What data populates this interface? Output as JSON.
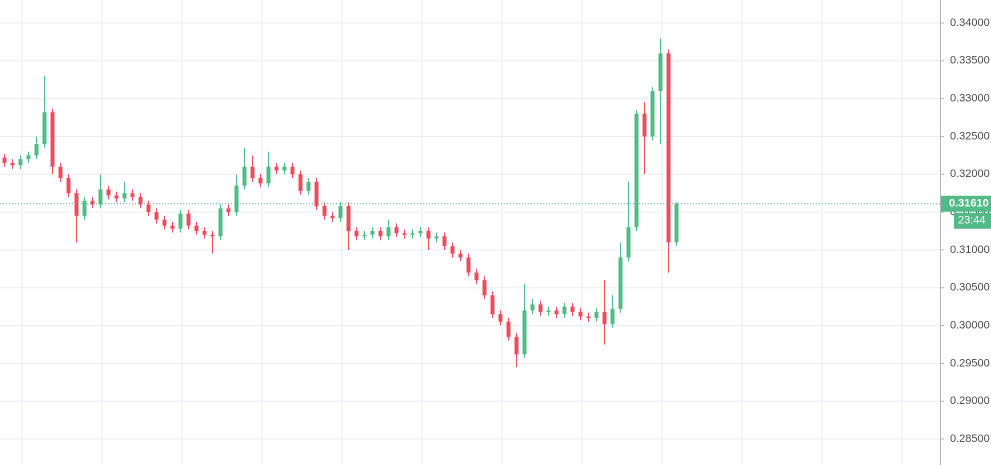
{
  "chart_data": {
    "type": "candlestick",
    "open": [
      0.3222,
      0.3215,
      0.3212,
      0.322,
      0.3225,
      0.324,
      0.3282,
      0.321,
      0.3195,
      0.3175,
      0.3145,
      0.3165,
      0.316,
      0.318,
      0.3172,
      0.3168,
      0.3175,
      0.317,
      0.316,
      0.315,
      0.314,
      0.3132,
      0.3128,
      0.3148,
      0.3132,
      0.3125,
      0.312,
      0.3118,
      0.3155,
      0.315,
      0.3185,
      0.321,
      0.3195,
      0.3188,
      0.321,
      0.3205,
      0.321,
      0.32,
      0.3178,
      0.319,
      0.3158,
      0.3145,
      0.3142,
      0.3158,
      0.3125,
      0.3118,
      0.312,
      0.3125,
      0.3118,
      0.313,
      0.3122,
      0.312,
      0.3122,
      0.3125,
      0.3115,
      0.3118,
      0.3105,
      0.3095,
      0.309,
      0.307,
      0.306,
      0.304,
      0.3015,
      0.3005,
      0.2985,
      0.2962,
      0.302,
      0.3028,
      0.3018,
      0.302,
      0.3015,
      0.3025,
      0.3018,
      0.3012,
      0.301,
      0.3018,
      0.3002,
      0.3022,
      0.309,
      0.313,
      0.328,
      0.325,
      0.331,
      0.336,
      0.311
    ],
    "high": [
      0.3227,
      0.322,
      0.3225,
      0.323,
      0.325,
      0.333,
      0.3287,
      0.3215,
      0.32,
      0.318,
      0.317,
      0.317,
      0.32,
      0.3185,
      0.3177,
      0.319,
      0.318,
      0.3175,
      0.3165,
      0.3155,
      0.3145,
      0.3137,
      0.3153,
      0.3153,
      0.3137,
      0.313,
      0.3125,
      0.316,
      0.316,
      0.32,
      0.3235,
      0.3225,
      0.32,
      0.323,
      0.3215,
      0.3215,
      0.3215,
      0.3205,
      0.3195,
      0.3195,
      0.3163,
      0.315,
      0.3163,
      0.3163,
      0.313,
      0.3125,
      0.313,
      0.313,
      0.314,
      0.3135,
      0.3127,
      0.3127,
      0.313,
      0.313,
      0.3123,
      0.3123,
      0.311,
      0.31,
      0.3095,
      0.3075,
      0.3065,
      0.3045,
      0.302,
      0.301,
      0.299,
      0.3055,
      0.3035,
      0.3033,
      0.3025,
      0.3025,
      0.303,
      0.303,
      0.3023,
      0.3017,
      0.3023,
      0.306,
      0.304,
      0.311,
      0.319,
      0.3285,
      0.3295,
      0.3315,
      0.338,
      0.3365,
      0.3163
    ],
    "low": [
      0.321,
      0.3207,
      0.3207,
      0.3215,
      0.322,
      0.3235,
      0.32,
      0.319,
      0.317,
      0.311,
      0.314,
      0.3155,
      0.3155,
      0.3167,
      0.3163,
      0.3163,
      0.3165,
      0.3155,
      0.3145,
      0.3135,
      0.3127,
      0.3123,
      0.3123,
      0.3127,
      0.312,
      0.3115,
      0.3095,
      0.3113,
      0.3145,
      0.3145,
      0.318,
      0.319,
      0.3183,
      0.3183,
      0.32,
      0.32,
      0.3195,
      0.3173,
      0.3173,
      0.3153,
      0.314,
      0.3137,
      0.3137,
      0.31,
      0.3113,
      0.3113,
      0.3115,
      0.3113,
      0.3113,
      0.3117,
      0.3115,
      0.3115,
      0.3117,
      0.31,
      0.311,
      0.31,
      0.309,
      0.3085,
      0.3065,
      0.3055,
      0.3035,
      0.301,
      0.3,
      0.298,
      0.2945,
      0.2957,
      0.3015,
      0.3013,
      0.3013,
      0.301,
      0.301,
      0.3013,
      0.3007,
      0.3005,
      0.3005,
      0.2975,
      0.2997,
      0.3017,
      0.3085,
      0.3125,
      0.32,
      0.3245,
      0.324,
      0.307,
      0.3105
    ],
    "close": [
      0.3215,
      0.3212,
      0.322,
      0.3225,
      0.324,
      0.3282,
      0.321,
      0.3195,
      0.3175,
      0.3145,
      0.3165,
      0.316,
      0.318,
      0.3172,
      0.3168,
      0.3175,
      0.317,
      0.316,
      0.315,
      0.314,
      0.3132,
      0.3128,
      0.3148,
      0.3132,
      0.3125,
      0.312,
      0.3118,
      0.3155,
      0.315,
      0.3185,
      0.321,
      0.3195,
      0.3188,
      0.321,
      0.3205,
      0.321,
      0.32,
      0.3178,
      0.319,
      0.3158,
      0.3145,
      0.3142,
      0.3158,
      0.3125,
      0.3118,
      0.312,
      0.3125,
      0.3118,
      0.313,
      0.3122,
      0.312,
      0.3122,
      0.3125,
      0.3115,
      0.3118,
      0.3105,
      0.3095,
      0.309,
      0.307,
      0.306,
      0.304,
      0.3015,
      0.3005,
      0.2985,
      0.2962,
      0.302,
      0.3028,
      0.3018,
      0.302,
      0.3015,
      0.3025,
      0.3018,
      0.3012,
      0.301,
      0.3018,
      0.3002,
      0.3022,
      0.309,
      0.313,
      0.328,
      0.325,
      0.331,
      0.336,
      0.311,
      0.3161
    ],
    "up_color": "#53b987",
    "down_color": "#eb4d5c",
    "ylim": [
      0.28156,
      0.34304
    ],
    "yticks": [
      {
        "value": 0.34,
        "label": "0.34000"
      },
      {
        "value": 0.335,
        "label": "0.33500"
      },
      {
        "value": 0.33,
        "label": "0.33000"
      },
      {
        "value": 0.325,
        "label": "0.32500"
      },
      {
        "value": 0.32,
        "label": "0.32000"
      },
      {
        "value": 0.315,
        "label": "0.31500"
      },
      {
        "value": 0.31,
        "label": "0.31000"
      },
      {
        "value": 0.305,
        "label": "0.30500"
      },
      {
        "value": 0.3,
        "label": "0.30000"
      },
      {
        "value": 0.295,
        "label": "0.29500"
      },
      {
        "value": 0.29,
        "label": "0.29000"
      },
      {
        "value": 0.285,
        "label": "0.28500"
      }
    ],
    "grid": true,
    "last_price": {
      "value": 0.3161,
      "label": "0.31610"
    },
    "countdown": "23:44"
  }
}
